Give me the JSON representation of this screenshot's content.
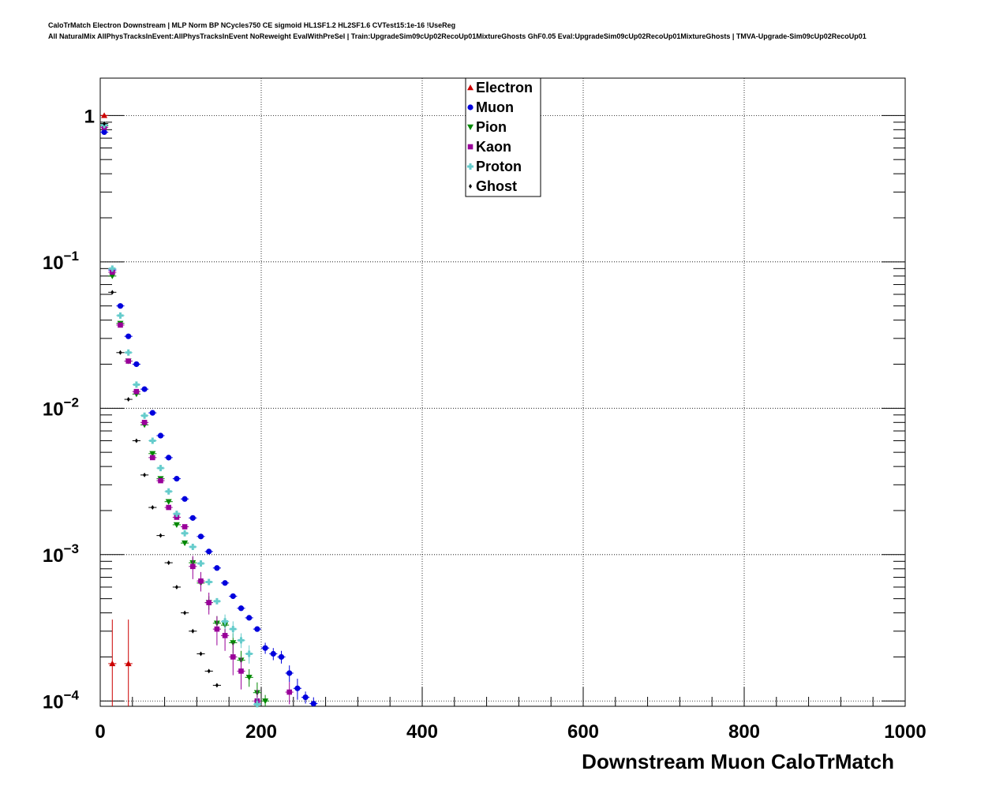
{
  "chart_data": {
    "type": "scatter",
    "title_line1": "CaloTrMatch Electron Downstream | MLP Norm BP NCycles750 CE sigmoid HL1SF1.2 HL2SF1.6 CVTest15:1e-16 !UseReg",
    "title_line2": "All NaturalMix AllPhysTracksInEvent:AllPhysTracksInEvent NoReweight EvalWithPreSel | Train:UpgradeSim09cUp02RecoUp01MixtureGhosts GhF0.05 Eval:UpgradeSim09cUp02RecoUp01MixtureGhosts | TMVA-Upgrade-Sim09cUp02RecoUp01",
    "xlabel": "Downstream Muon CaloTrMatch",
    "ylabel": "",
    "xlim": [
      0,
      1000
    ],
    "ylim": [
      9.2e-05,
      1.8
    ],
    "yscale": "log",
    "grid": true,
    "legend_position": "top-center",
    "x_ticks": [
      {
        "value": 0,
        "label": "0"
      },
      {
        "value": 200,
        "label": "200"
      },
      {
        "value": 400,
        "label": "400"
      },
      {
        "value": 600,
        "label": "600"
      },
      {
        "value": 800,
        "label": "800"
      },
      {
        "value": 1000,
        "label": "1000"
      }
    ],
    "y_ticks": [
      {
        "value": 1,
        "base": "1",
        "exp": ""
      },
      {
        "value": 0.1,
        "base": "10",
        "exp": "−1"
      },
      {
        "value": 0.01,
        "base": "10",
        "exp": "−2"
      },
      {
        "value": 0.001,
        "base": "10",
        "exp": "−3"
      },
      {
        "value": 0.0001,
        "base": "10",
        "exp": "−4"
      }
    ],
    "series": [
      {
        "name": "Electron",
        "color": "#cc0000",
        "marker": "triangle-up",
        "points": [
          [
            5,
            1.0,
            0
          ],
          [
            15,
            0.00018,
            0.00018
          ],
          [
            35,
            0.00018,
            0.00018
          ]
        ]
      },
      {
        "name": "Muon",
        "color": "#0000dd",
        "marker": "circle",
        "points": [
          [
            5,
            0.77,
            0
          ],
          [
            15,
            0.088,
            0
          ],
          [
            25,
            0.05,
            0
          ],
          [
            35,
            0.031,
            0
          ],
          [
            45,
            0.02,
            0
          ],
          [
            55,
            0.0135,
            0
          ],
          [
            65,
            0.0093,
            0
          ],
          [
            75,
            0.0065,
            0
          ],
          [
            85,
            0.0046,
            0
          ],
          [
            95,
            0.0033,
            0
          ],
          [
            105,
            0.0024,
            0
          ],
          [
            115,
            0.00178,
            0
          ],
          [
            125,
            0.00133,
            0
          ],
          [
            135,
            0.00105,
            0
          ],
          [
            145,
            0.00081,
            0
          ],
          [
            155,
            0.00064,
            0
          ],
          [
            165,
            0.00052,
            0
          ],
          [
            175,
            0.00043,
            0
          ],
          [
            185,
            0.00037,
            0
          ],
          [
            195,
            0.00031,
            0
          ],
          [
            205,
            0.00023,
            2e-05
          ],
          [
            215,
            0.00021,
            2e-05
          ],
          [
            225,
            0.0002,
            2e-05
          ],
          [
            235,
            0.000155,
            2e-05
          ],
          [
            245,
            0.000122,
            2e-05
          ],
          [
            255,
            0.000106,
            1e-05
          ],
          [
            265,
            9.6e-05,
            1e-05
          ]
        ]
      },
      {
        "name": "Pion",
        "color": "#008800",
        "marker": "triangle-down",
        "points": [
          [
            5,
            0.85,
            0
          ],
          [
            15,
            0.08,
            0
          ],
          [
            25,
            0.038,
            0
          ],
          [
            35,
            0.021,
            0
          ],
          [
            45,
            0.0125,
            0
          ],
          [
            55,
            0.0077,
            0
          ],
          [
            65,
            0.0049,
            0
          ],
          [
            75,
            0.0033,
            0
          ],
          [
            85,
            0.0023,
            0
          ],
          [
            95,
            0.0016,
            0
          ],
          [
            105,
            0.0012,
            0
          ],
          [
            115,
            0.00088,
            8e-05
          ],
          [
            125,
            0.00064,
            6e-05
          ],
          [
            135,
            0.00047,
            5e-05
          ],
          [
            145,
            0.00034,
            4e-05
          ],
          [
            155,
            0.00033,
            4e-05
          ],
          [
            165,
            0.00025,
            4e-05
          ],
          [
            175,
            0.00019,
            3e-05
          ],
          [
            185,
            0.000145,
            2e-05
          ],
          [
            195,
            0.000114,
            2e-05
          ],
          [
            205,
            0.0001,
            1e-05
          ]
        ]
      },
      {
        "name": "Kaon",
        "color": "#990099",
        "marker": "square",
        "points": [
          [
            5,
            0.83,
            0
          ],
          [
            15,
            0.085,
            0
          ],
          [
            25,
            0.037,
            0
          ],
          [
            35,
            0.021,
            0
          ],
          [
            45,
            0.013,
            0
          ],
          [
            55,
            0.008,
            0
          ],
          [
            65,
            0.0046,
            0
          ],
          [
            75,
            0.0032,
            0
          ],
          [
            85,
            0.0021,
            0
          ],
          [
            95,
            0.0018,
            0
          ],
          [
            105,
            0.00155,
            0
          ],
          [
            115,
            0.00083,
            0.00015
          ],
          [
            125,
            0.00066,
            0.0001
          ],
          [
            135,
            0.00047,
            8e-05
          ],
          [
            145,
            0.00031,
            7e-05
          ],
          [
            155,
            0.00028,
            6e-05
          ],
          [
            165,
            0.0002,
            5e-05
          ],
          [
            175,
            0.00016,
            4e-05
          ],
          [
            195,
            0.0001,
            2e-05
          ],
          [
            235,
            0.000115,
            2e-05
          ]
        ]
      },
      {
        "name": "Proton",
        "color": "#66cccc",
        "marker": "cross",
        "points": [
          [
            5,
            0.86,
            0
          ],
          [
            15,
            0.09,
            0
          ],
          [
            25,
            0.043,
            0
          ],
          [
            35,
            0.024,
            0
          ],
          [
            45,
            0.0145,
            0
          ],
          [
            55,
            0.0089,
            0
          ],
          [
            65,
            0.006,
            0
          ],
          [
            75,
            0.0039,
            0
          ],
          [
            85,
            0.0027,
            0
          ],
          [
            95,
            0.0019,
            0
          ],
          [
            105,
            0.0014,
            0
          ],
          [
            115,
            0.00113,
            0
          ],
          [
            125,
            0.00087,
            0
          ],
          [
            135,
            0.00065,
            0
          ],
          [
            145,
            0.00048,
            0
          ],
          [
            155,
            0.00035,
            4e-05
          ],
          [
            165,
            0.00031,
            4e-05
          ],
          [
            175,
            0.00026,
            3e-05
          ],
          [
            185,
            0.00021,
            3e-05
          ],
          [
            195,
            9.5e-05,
            1e-05
          ]
        ]
      },
      {
        "name": "Ghost",
        "color": "#000000",
        "marker": "diamond",
        "points": [
          [
            5,
            0.88,
            0
          ],
          [
            15,
            0.062,
            0
          ],
          [
            25,
            0.024,
            0
          ],
          [
            35,
            0.0115,
            0
          ],
          [
            45,
            0.006,
            0
          ],
          [
            55,
            0.0035,
            0
          ],
          [
            65,
            0.0021,
            0
          ],
          [
            75,
            0.00135,
            0
          ],
          [
            85,
            0.00088,
            0
          ],
          [
            95,
            0.0006,
            0
          ],
          [
            105,
            0.0004,
            0
          ],
          [
            115,
            0.0003,
            0
          ],
          [
            125,
            0.00021,
            0
          ],
          [
            135,
            0.00016,
            0
          ],
          [
            145,
            0.000128,
            0
          ]
        ]
      }
    ]
  }
}
